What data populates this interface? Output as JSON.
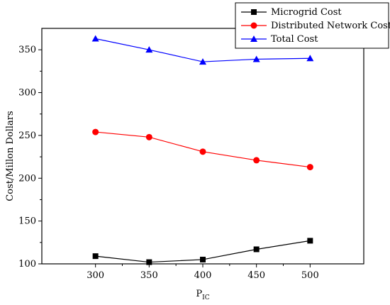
{
  "chart_data": {
    "type": "line",
    "title": "",
    "xlabel": "P",
    "xlabel_sub": "IC",
    "ylabel": "Cost/Millon Dollars",
    "x": [
      300,
      350,
      400,
      450,
      500
    ],
    "xlim": [
      250,
      550
    ],
    "ylim": [
      100,
      375
    ],
    "xticks": [
      300,
      350,
      400,
      450,
      500
    ],
    "yticks": [
      100,
      150,
      200,
      250,
      300,
      350
    ],
    "grid": false,
    "legend_position": "top-right",
    "series": [
      {
        "name": "Microgrid Cost",
        "marker": "square",
        "color": "#000000",
        "values": [
          109,
          102,
          105,
          117,
          127
        ]
      },
      {
        "name": "Distributed Network Cost",
        "marker": "circle",
        "color": "#ff0000",
        "values": [
          254,
          248,
          231,
          221,
          213
        ]
      },
      {
        "name": "Total Cost",
        "marker": "triangle",
        "color": "#0000ff",
        "values": [
          363,
          350,
          336,
          339,
          340
        ]
      }
    ]
  }
}
